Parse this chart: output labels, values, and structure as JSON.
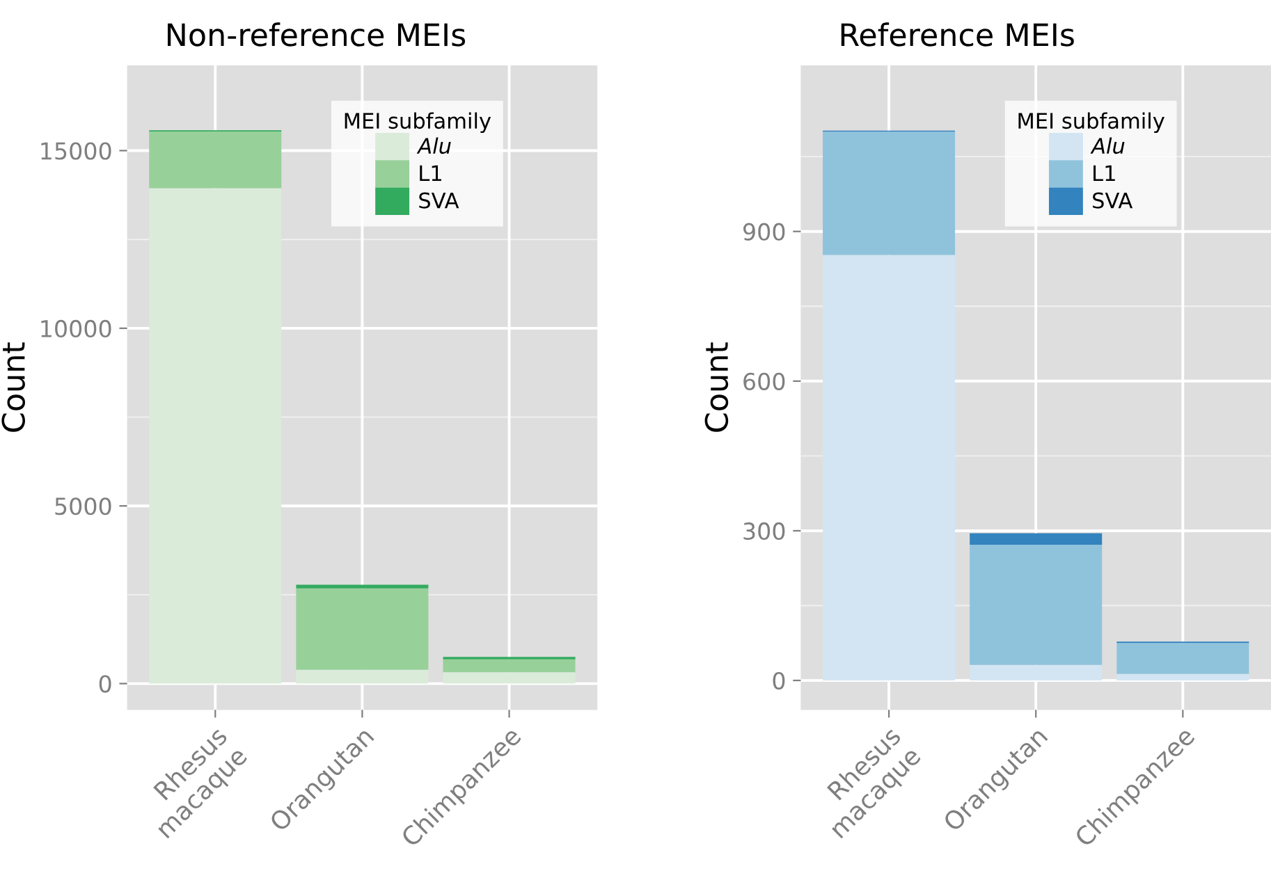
{
  "chart_data": [
    {
      "type": "bar",
      "title": "Non-reference MEIs",
      "ylabel": "Count",
      "legend_title": "MEI subfamily",
      "stacked": true,
      "grid": true,
      "legend": "top right",
      "categories": [
        "Rhesus\nmacaque",
        "Orangutan",
        "Chimpanzee"
      ],
      "series": [
        {
          "name": "Alu",
          "color": "#dbebd9",
          "values": [
            13940,
            390,
            320
          ]
        },
        {
          "name": "L1",
          "color": "#98d09a",
          "values": [
            1600,
            2290,
            360
          ]
        },
        {
          "name": "SVA",
          "color": "#33ab5f",
          "values": [
            30,
            100,
            70
          ]
        }
      ],
      "ylim": [
        -740,
        17400
      ],
      "yticks": [
        0,
        5000,
        10000,
        15000
      ]
    },
    {
      "type": "bar",
      "title": "Reference MEIs",
      "ylabel": "Count",
      "legend_title": "MEI subfamily",
      "stacked": true,
      "grid": true,
      "legend": "top right",
      "categories": [
        "Rhesus\nmacaque",
        "Orangutan",
        "Chimpanzee"
      ],
      "series": [
        {
          "name": "Alu",
          "color": "#d3e5f3",
          "values": [
            853,
            31,
            13
          ]
        },
        {
          "name": "L1",
          "color": "#8fc3dc",
          "values": [
            247,
            241,
            62
          ]
        },
        {
          "name": "SVA",
          "color": "#3283be",
          "values": [
            2,
            23,
            3
          ]
        }
      ],
      "ylim": [
        -59,
        1233
      ],
      "yticks": [
        0,
        300,
        600,
        900
      ]
    }
  ]
}
